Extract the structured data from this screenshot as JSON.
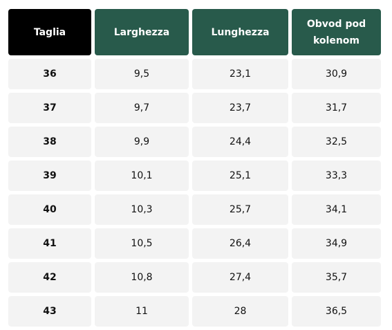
{
  "table": {
    "header": [
      "Taglia",
      "Larghezza",
      "Lunghezza",
      "Obvod pod kolenom"
    ],
    "rows": [
      [
        "36",
        "9,5",
        "23,1",
        "30,9"
      ],
      [
        "37",
        "9,7",
        "23,7",
        "31,7"
      ],
      [
        "38",
        "9,9",
        "24,4",
        "32,5"
      ],
      [
        "39",
        "10,1",
        "25,1",
        "33,3"
      ],
      [
        "40",
        "10,3",
        "25,7",
        "34,1"
      ],
      [
        "41",
        "10,5",
        "26,4",
        "34,9"
      ],
      [
        "42",
        "10,8",
        "27,4",
        "35,7"
      ],
      [
        "43",
        "11",
        "28",
        "36,5"
      ]
    ]
  }
}
